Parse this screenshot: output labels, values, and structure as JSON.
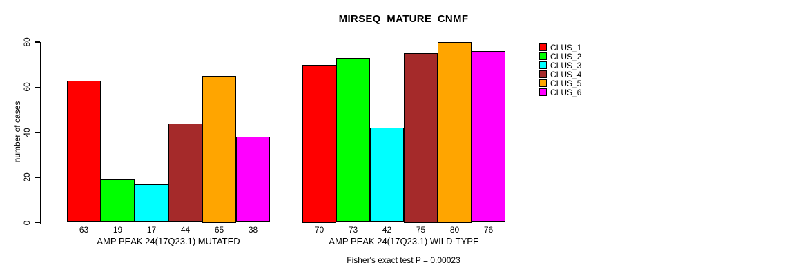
{
  "chart_data": {
    "type": "bar",
    "title": "MIRSEQ_MATURE_CNMF",
    "xlabel": "",
    "ylabel": "number of cases",
    "ylim": [
      0,
      80
    ],
    "yticks": [
      0,
      20,
      40,
      60,
      80
    ],
    "grid": false,
    "legend_position": "top-right",
    "bar_value_labels_shown": true,
    "categories": [
      "AMP PEAK 24(17Q23.1) MUTATED",
      "AMP PEAK 24(17Q23.1) WILD-TYPE"
    ],
    "series": [
      {
        "name": "CLUS_1",
        "color": "#FF0000",
        "values": [
          63,
          70
        ]
      },
      {
        "name": "CLUS_2",
        "color": "#00FF00",
        "values": [
          19,
          73
        ]
      },
      {
        "name": "CLUS_3",
        "color": "#00FFFF",
        "values": [
          17,
          42
        ]
      },
      {
        "name": "CLUS_4",
        "color": "#A52A2A",
        "values": [
          44,
          75
        ]
      },
      {
        "name": "CLUS_5",
        "color": "#FFA500",
        "values": [
          65,
          80
        ]
      },
      {
        "name": "CLUS_6",
        "color": "#FF00FF",
        "values": [
          38,
          76
        ]
      }
    ],
    "footnote": "Fisher's exact test P = 0.00023"
  }
}
